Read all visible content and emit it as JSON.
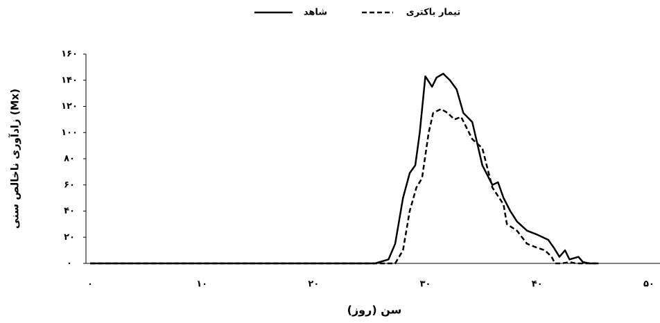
{
  "chart_data": {
    "type": "line",
    "xlabel": "سن (روز)",
    "ylabel": "زادآوری ناخالص سنی (Mx)",
    "xlim": [
      0,
      51
    ],
    "ylim": [
      0,
      160
    ],
    "xticks": [
      {
        "value": 0,
        "label": "۰"
      },
      {
        "value": 10,
        "label": "۱۰"
      },
      {
        "value": 20,
        "label": "۲۰"
      },
      {
        "value": 30,
        "label": "۳۰"
      },
      {
        "value": 40,
        "label": "۴۰"
      },
      {
        "value": 50,
        "label": "۵۰"
      }
    ],
    "yticks": [
      {
        "value": 0,
        "label": "۰"
      },
      {
        "value": 20,
        "label": "۲۰"
      },
      {
        "value": 40,
        "label": "۴۰"
      },
      {
        "value": 60,
        "label": "۶۰"
      },
      {
        "value": 80,
        "label": "۸۰"
      },
      {
        "value": 100,
        "label": "۱۰۰"
      },
      {
        "value": 120,
        "label": "۱۲۰"
      },
      {
        "value": 140,
        "label": "۱۴۰"
      },
      {
        "value": 160,
        "label": "۱۶۰"
      }
    ],
    "series": [
      {
        "name": "شاهد",
        "color": "#000000",
        "dash": false,
        "x": [
          0,
          25.5,
          26.7,
          27.3,
          28,
          28.6,
          29.1,
          29.5,
          30,
          30.6,
          31,
          31.6,
          32.2,
          32.8,
          33.4,
          34.2,
          35.1,
          36,
          36.5,
          37,
          37.6,
          38.2,
          39.1,
          40,
          41,
          41.5,
          42,
          42.5,
          42.9,
          43.7,
          44.1,
          44.7,
          45.5
        ],
        "values": [
          0,
          0,
          3,
          15,
          50,
          69,
          75,
          100,
          143,
          135,
          142,
          145,
          140,
          133,
          115,
          108,
          75,
          60,
          62,
          50,
          40,
          32,
          25,
          22,
          18,
          12,
          5,
          10,
          3,
          5,
          1,
          0,
          0
        ]
      },
      {
        "name": "تیمار باکتری",
        "color": "#000000",
        "dash": true,
        "x": [
          0,
          27.3,
          28,
          28.6,
          29.2,
          29.7,
          30.3,
          30.7,
          31.4,
          32,
          32.6,
          33.2,
          34.2,
          35.1,
          36,
          37,
          37.3,
          38.2,
          39.1,
          40,
          40.7,
          41.3,
          41.6,
          42.2,
          42.9,
          43.5,
          45.3
        ],
        "values": [
          0,
          0,
          10,
          40,
          58,
          65,
          100,
          115,
          118,
          115,
          110,
          112,
          95,
          88,
          58,
          45,
          30,
          25,
          15,
          12,
          10,
          5,
          0,
          0,
          1,
          0,
          0
        ]
      }
    ]
  }
}
